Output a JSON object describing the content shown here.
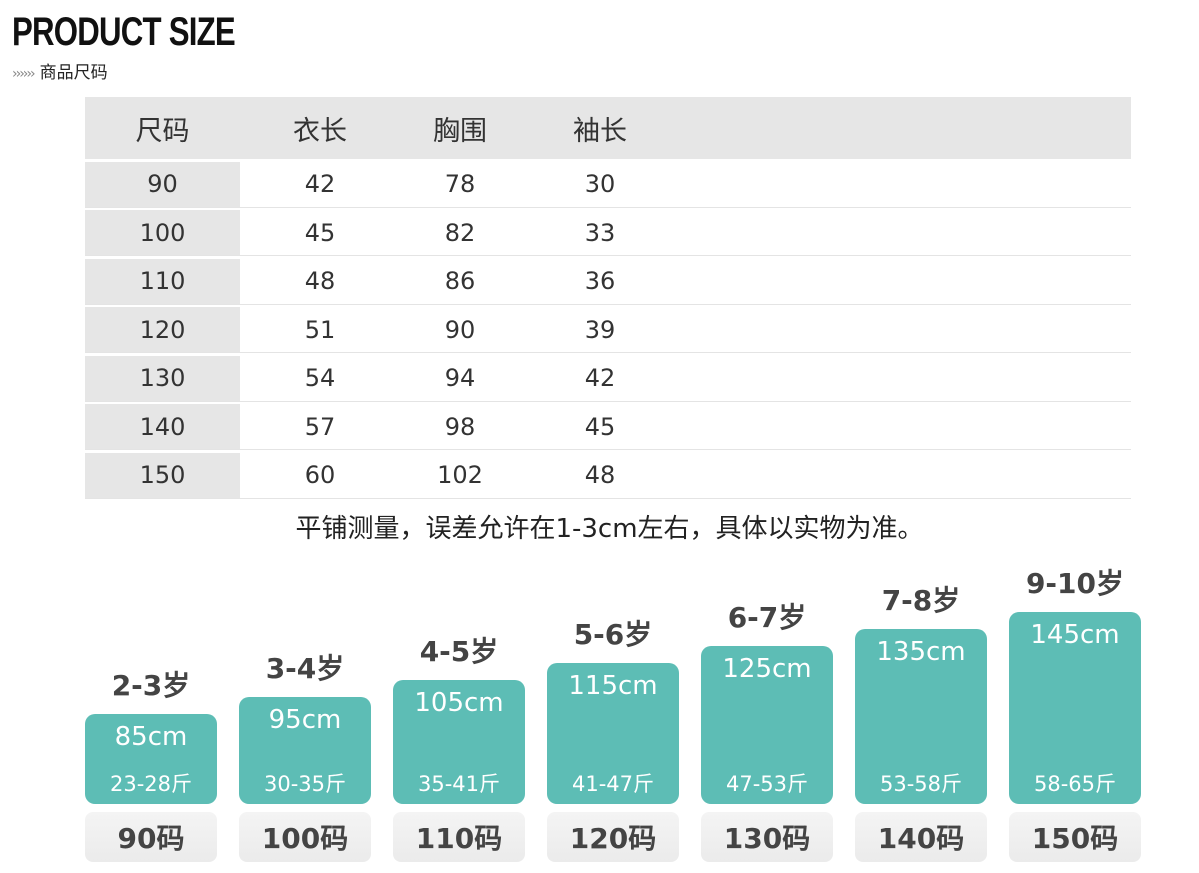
{
  "title": "PRODUCT SIZE",
  "subtitle": "商品尺码",
  "subtitle_arrows": "››››››",
  "table": {
    "headers": [
      "尺码",
      "衣长",
      "胸围",
      "袖长"
    ],
    "rows": [
      [
        "90",
        "42",
        "78",
        "30"
      ],
      [
        "100",
        "45",
        "82",
        "33"
      ],
      [
        "110",
        "48",
        "86",
        "36"
      ],
      [
        "120",
        "51",
        "90",
        "39"
      ],
      [
        "130",
        "54",
        "94",
        "42"
      ],
      [
        "140",
        "57",
        "98",
        "45"
      ],
      [
        "150",
        "60",
        "102",
        "48"
      ]
    ]
  },
  "note": "平铺测量，误差允许在1-3cm左右，具体以实物为准。",
  "chart_data": {
    "type": "bar",
    "categories": [
      "90码",
      "100码",
      "110码",
      "120码",
      "130码",
      "140码",
      "150码"
    ],
    "ages": [
      "2-3岁",
      "3-4岁",
      "4-5岁",
      "5-6岁",
      "6-7岁",
      "7-8岁",
      "9-10岁"
    ],
    "heights": [
      "85cm",
      "95cm",
      "105cm",
      "115cm",
      "125cm",
      "135cm",
      "145cm"
    ],
    "weights": [
      "23-28斤",
      "30-35斤",
      "35-41斤",
      "41-47斤",
      "47-53斤",
      "53-58斤",
      "58-65斤"
    ],
    "values": [
      85,
      95,
      105,
      115,
      125,
      135,
      145
    ],
    "bar_color": "#5dbdb5"
  }
}
